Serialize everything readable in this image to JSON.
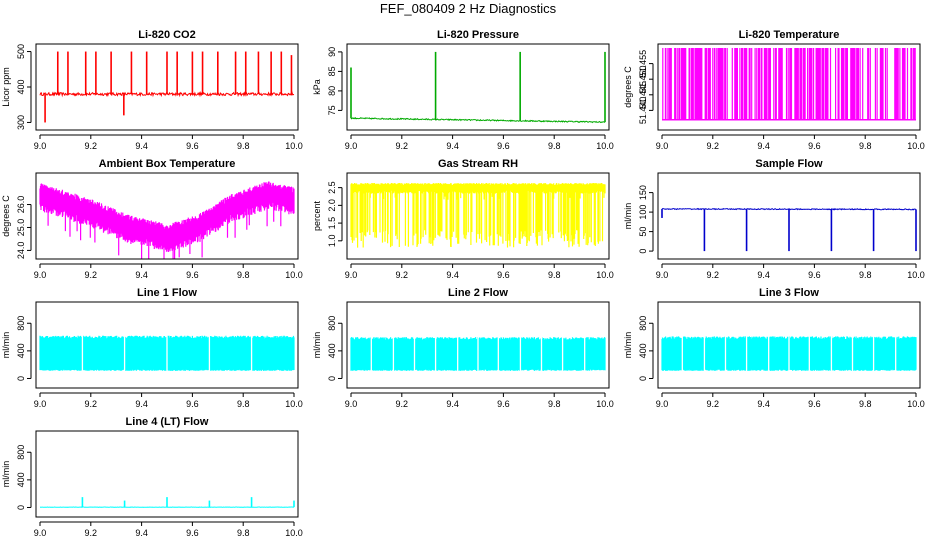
{
  "figure": {
    "title": "FEF_080409  2 Hz Diagnostics"
  },
  "chart_data": [
    {
      "id": "co2",
      "type": "line",
      "title": "Li-820 CO2",
      "ylabel": "Licor ppm",
      "color": "#ff0000",
      "xlim": [
        9.0,
        10.0
      ],
      "ylim": [
        290,
        510
      ],
      "xticks": [
        "9.0",
        "9.2",
        "9.4",
        "9.6",
        "9.8",
        "10.0"
      ],
      "yticks": [
        "300",
        "400",
        "500"
      ],
      "baseline_start": 380,
      "baseline_end": 380,
      "noise": 4,
      "fill_to": null,
      "spikes": [
        {
          "x": 9.02,
          "y": 300
        },
        {
          "x": 9.07,
          "y": 500
        },
        {
          "x": 9.11,
          "y": 500
        },
        {
          "x": 9.18,
          "y": 500
        },
        {
          "x": 9.22,
          "y": 500
        },
        {
          "x": 9.28,
          "y": 500
        },
        {
          "x": 9.33,
          "y": 320
        },
        {
          "x": 9.36,
          "y": 500
        },
        {
          "x": 9.42,
          "y": 500
        },
        {
          "x": 9.5,
          "y": 500
        },
        {
          "x": 9.54,
          "y": 500
        },
        {
          "x": 9.6,
          "y": 500
        },
        {
          "x": 9.64,
          "y": 500
        },
        {
          "x": 9.7,
          "y": 500
        },
        {
          "x": 9.77,
          "y": 500
        },
        {
          "x": 9.81,
          "y": 500
        },
        {
          "x": 9.86,
          "y": 500
        },
        {
          "x": 9.91,
          "y": 500
        },
        {
          "x": 9.95,
          "y": 500
        },
        {
          "x": 9.99,
          "y": 490
        }
      ]
    },
    {
      "id": "pressure",
      "type": "line",
      "title": "Li-820 Pressure",
      "ylabel": "kPa",
      "color": "#00aa00",
      "xlim": [
        9.0,
        10.0
      ],
      "ylim": [
        71,
        91
      ],
      "xticks": [
        "9.0",
        "9.2",
        "9.4",
        "9.6",
        "9.8",
        "10.0"
      ],
      "yticks": [
        "75",
        "80",
        "85",
        "90"
      ],
      "baseline_start": 73,
      "baseline_end": 72,
      "noise": 0.15,
      "fill_to": null,
      "spikes": [
        {
          "x": 9.0,
          "y": 86
        },
        {
          "x": 9.333,
          "y": 90
        },
        {
          "x": 9.666,
          "y": 90
        },
        {
          "x": 10.0,
          "y": 90
        }
      ]
    },
    {
      "id": "licortemp",
      "type": "bars",
      "title": "Li-820 Temperature",
      "ylabel": "degrees C",
      "color": "#ff00ff",
      "xlim": [
        9.0,
        10.0
      ],
      "ylim": [
        51.435,
        51.46
      ],
      "xticks": [
        "9.0",
        "9.2",
        "9.4",
        "9.6",
        "9.8",
        "10.0"
      ],
      "yticks": [
        "51.440",
        "51.445",
        "51.450",
        "51.455"
      ],
      "low": 51.437,
      "high": 51.46
    },
    {
      "id": "ambtemp",
      "type": "band",
      "title": "Ambient Box Temperature",
      "ylabel": "degrees C",
      "color": "#ff00ff",
      "xlim": [
        9.0,
        10.0
      ],
      "ylim": [
        23.8,
        27.2
      ],
      "xticks": [
        "9.0",
        "9.2",
        "9.4",
        "9.6",
        "9.8",
        "10.0"
      ],
      "yticks": [
        "24.0",
        "25.0",
        "26.0"
      ],
      "center": [
        {
          "x": 9.0,
          "y": 26.4
        },
        {
          "x": 9.2,
          "y": 25.7
        },
        {
          "x": 9.35,
          "y": 25.0
        },
        {
          "x": 9.5,
          "y": 24.6
        },
        {
          "x": 9.62,
          "y": 25.0
        },
        {
          "x": 9.75,
          "y": 25.9
        },
        {
          "x": 9.9,
          "y": 26.5
        },
        {
          "x": 10.0,
          "y": 26.2
        }
      ],
      "spread": 0.5
    },
    {
      "id": "rh",
      "type": "band",
      "title": "Gas Stream RH",
      "ylabel": "percent",
      "color": "#ffff00",
      "xlim": [
        9.0,
        10.0
      ],
      "ylim": [
        0.6,
        2.8
      ],
      "xticks": [
        "9.0",
        "9.2",
        "9.4",
        "9.6",
        "9.8",
        "10.0"
      ],
      "yticks": [
        "1.0",
        "1.5",
        "2.0",
        "2.5"
      ],
      "center": [
        {
          "x": 9.0,
          "y": 2.5
        },
        {
          "x": 10.0,
          "y": 2.5
        }
      ],
      "spread": 0.12,
      "dips_to": 0.8
    },
    {
      "id": "sampleflow",
      "type": "line",
      "title": "Sample Flow",
      "ylabel": "ml/min",
      "color": "#0000cc",
      "xlim": [
        9.0,
        10.0
      ],
      "ylim": [
        -10,
        190
      ],
      "xticks": [
        "9.0",
        "9.2",
        "9.4",
        "9.6",
        "9.8",
        "10.0"
      ],
      "yticks": [
        "0",
        "50",
        "100",
        "150"
      ],
      "baseline_start": 108,
      "baseline_end": 107,
      "noise": 1.2,
      "fill_to": null,
      "spikes": [
        {
          "x": 9.0,
          "y": 85
        },
        {
          "x": 9.167,
          "y": 0
        },
        {
          "x": 9.333,
          "y": 0
        },
        {
          "x": 9.5,
          "y": 0
        },
        {
          "x": 9.667,
          "y": 0
        },
        {
          "x": 9.833,
          "y": 0
        },
        {
          "x": 10.0,
          "y": 0
        }
      ]
    },
    {
      "id": "line1",
      "type": "band",
      "title": "Line 1 Flow",
      "ylabel": "ml/min",
      "color": "#00ffff",
      "xlim": [
        9.0,
        10.0
      ],
      "ylim": [
        -80,
        1050
      ],
      "xticks": [
        "9.0",
        "9.2",
        "9.4",
        "9.6",
        "9.8",
        "10.0"
      ],
      "yticks": [
        "0",
        "400",
        "800"
      ],
      "band_low": 120,
      "band_high": 600,
      "gaps": [
        9.167,
        9.333,
        9.5,
        9.667,
        9.833
      ]
    },
    {
      "id": "line2",
      "type": "band",
      "title": "Line 2 Flow",
      "ylabel": "ml/min",
      "color": "#00ffff",
      "xlim": [
        9.0,
        10.0
      ],
      "ylim": [
        -80,
        1050
      ],
      "xticks": [
        "9.0",
        "9.2",
        "9.4",
        "9.6",
        "9.8",
        "10.0"
      ],
      "yticks": [
        "0",
        "400",
        "800"
      ],
      "band_low": 120,
      "band_high": 580,
      "gaps": [
        9.08,
        9.167,
        9.25,
        9.333,
        9.42,
        9.5,
        9.58,
        9.667,
        9.75,
        9.833,
        9.92
      ]
    },
    {
      "id": "line3",
      "type": "band",
      "title": "Line 3 Flow",
      "ylabel": "ml/min",
      "color": "#00ffff",
      "xlim": [
        9.0,
        10.0
      ],
      "ylim": [
        -80,
        1050
      ],
      "xticks": [
        "9.0",
        "9.2",
        "9.4",
        "9.6",
        "9.8",
        "10.0"
      ],
      "yticks": [
        "0",
        "400",
        "800"
      ],
      "band_low": 120,
      "band_high": 590,
      "gaps": [
        9.08,
        9.167,
        9.25,
        9.333,
        9.42,
        9.5,
        9.58,
        9.667,
        9.75,
        9.833,
        9.92
      ]
    },
    {
      "id": "line4",
      "type": "line",
      "title": "Line 4 (LT) Flow",
      "ylabel": "ml/min",
      "color": "#00ffff",
      "xlim": [
        9.0,
        10.0
      ],
      "ylim": [
        -80,
        1050
      ],
      "xticks": [
        "9.0",
        "9.2",
        "9.4",
        "9.6",
        "9.8",
        "10.0"
      ],
      "yticks": [
        "0",
        "400",
        "800"
      ],
      "baseline_start": 5,
      "baseline_end": 5,
      "noise": 2,
      "fill_to": null,
      "spikes": [
        {
          "x": 9.167,
          "y": 150
        },
        {
          "x": 9.333,
          "y": 100
        },
        {
          "x": 9.5,
          "y": 150
        },
        {
          "x": 9.667,
          "y": 100
        },
        {
          "x": 9.833,
          "y": 150
        },
        {
          "x": 10.0,
          "y": 100
        }
      ]
    }
  ]
}
